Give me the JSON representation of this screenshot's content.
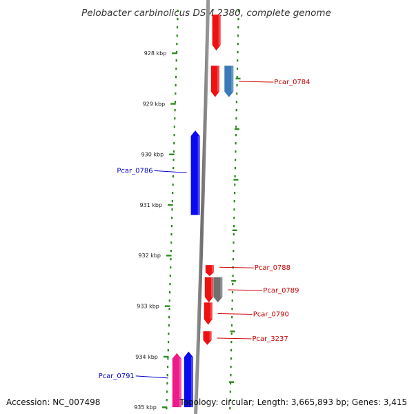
{
  "title": "Pelobacter carbinolicus DSM 2380, complete genome",
  "footer": {
    "accession": "Accession: NC_007498",
    "summary": "Topology: circular; Length: 3,665,893 bp; Genes: 3,415"
  },
  "ticks": [
    {
      "kbp": 928,
      "label": "928 kbp"
    },
    {
      "kbp": 929,
      "label": "929 kbp"
    },
    {
      "kbp": 930,
      "label": "930 kbp"
    },
    {
      "kbp": 931,
      "label": "931 kbp"
    },
    {
      "kbp": 932,
      "label": "932 kbp"
    },
    {
      "kbp": 933,
      "label": "933 kbp"
    },
    {
      "kbp": 934,
      "label": "934 kbp"
    },
    {
      "kbp": 935,
      "label": "935 kbp"
    }
  ],
  "genes": [
    {
      "id": "gene-top",
      "strand": "+",
      "lane": "outer",
      "start_kbp": 927.24,
      "end_kbp": 927.95,
      "color": "#ee1111",
      "label": ""
    },
    {
      "id": "gene-0784a",
      "strand": "+",
      "lane": "outer",
      "start_kbp": 928.25,
      "end_kbp": 928.87,
      "color": "#ee1111",
      "label": ""
    },
    {
      "id": "gene-0784b",
      "strand": "+",
      "lane": "rna",
      "start_kbp": 928.25,
      "end_kbp": 928.87,
      "color": "#3a7ab8",
      "label": "Pcar_0784"
    },
    {
      "id": "gene-0786",
      "strand": "-",
      "lane": "inner",
      "start_kbp": 929.53,
      "end_kbp": 931.2,
      "color": "#0a0af0",
      "label": "Pcar_0786"
    },
    {
      "id": "gene-0788",
      "strand": "+",
      "lane": "outer",
      "start_kbp": 932.19,
      "end_kbp": 932.41,
      "color": "#ee1111",
      "label": "Pcar_0788"
    },
    {
      "id": "gene-0789a",
      "strand": "+",
      "lane": "outer",
      "start_kbp": 932.43,
      "end_kbp": 932.93,
      "color": "#ee1111",
      "label": ""
    },
    {
      "id": "gene-0789b",
      "strand": "+",
      "lane": "pseudo",
      "start_kbp": 932.43,
      "end_kbp": 932.93,
      "color": "#707070",
      "label": "Pcar_0789"
    },
    {
      "id": "gene-0790",
      "strand": "+",
      "lane": "outer",
      "start_kbp": 932.93,
      "end_kbp": 933.37,
      "color": "#ee1111",
      "label": "Pcar_0790"
    },
    {
      "id": "gene-3237",
      "strand": "+",
      "lane": "outer",
      "start_kbp": 933.5,
      "end_kbp": 933.77,
      "color": "#ee1111",
      "label": "Pcar_3237"
    },
    {
      "id": "gene-0791a",
      "strand": "-",
      "lane": "inner",
      "start_kbp": 933.9,
      "end_kbp": 935.0,
      "color": "#0a0af0",
      "label": ""
    },
    {
      "id": "gene-0791b",
      "strand": "-",
      "lane": "rna",
      "start_kbp": 933.93,
      "end_kbp": 935.0,
      "color": "#ee1a8a",
      "label": "Pcar_0791"
    }
  ]
}
